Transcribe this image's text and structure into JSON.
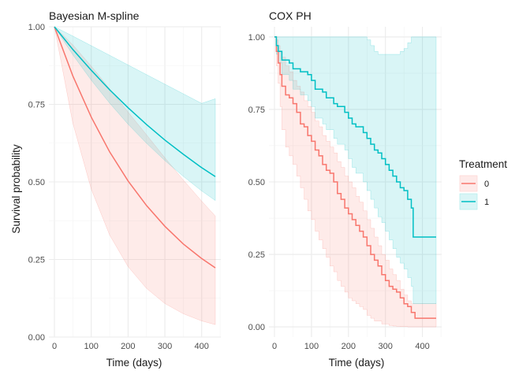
{
  "chart_data": [
    {
      "type": "line",
      "title": "Bayesian M-spline",
      "xlabel": "Time (days)",
      "ylabel": "Survival probability",
      "xlim": [
        -15,
        452
      ],
      "ylim": [
        0,
        1
      ],
      "x_ticks": [
        0,
        100,
        200,
        300,
        400
      ],
      "y_ticks": [
        0.0,
        0.25,
        0.5,
        0.75,
        1.0
      ],
      "y_tick_labels": [
        "0.00",
        "0.25",
        "0.50",
        "0.75",
        "1.00"
      ],
      "grid": true,
      "series": [
        {
          "name": "0",
          "color": "#F8766D",
          "x": [
            0,
            50,
            100,
            150,
            200,
            250,
            300,
            350,
            400,
            437
          ],
          "y": [
            1.0,
            0.842,
            0.709,
            0.597,
            0.503,
            0.424,
            0.357,
            0.3,
            0.253,
            0.223
          ],
          "lower": [
            1.0,
            0.69,
            0.477,
            0.329,
            0.227,
            0.157,
            0.108,
            0.075,
            0.052,
            0.04
          ],
          "upper": [
            1.0,
            0.942,
            0.873,
            0.8,
            0.725,
            0.652,
            0.578,
            0.506,
            0.438,
            0.39
          ]
        },
        {
          "name": "1",
          "color": "#00BFC4",
          "x": [
            0,
            50,
            100,
            150,
            200,
            250,
            300,
            350,
            400,
            437
          ],
          "y": [
            1.0,
            0.927,
            0.86,
            0.797,
            0.739,
            0.685,
            0.635,
            0.589,
            0.546,
            0.517
          ],
          "lower": [
            1.0,
            0.91,
            0.828,
            0.754,
            0.686,
            0.625,
            0.569,
            0.518,
            0.471,
            0.44
          ],
          "upper": [
            1.0,
            0.97,
            0.939,
            0.908,
            0.877,
            0.846,
            0.815,
            0.784,
            0.753,
            0.768
          ]
        }
      ]
    },
    {
      "type": "line",
      "step": true,
      "title": "COX PH",
      "xlabel": "Time (days)",
      "xlim": [
        -15,
        452
      ],
      "ylim": [
        -0.035,
        1.035
      ],
      "x_ticks": [
        0,
        100,
        200,
        300,
        400
      ],
      "y_ticks": [
        0.0,
        0.25,
        0.5,
        0.75,
        1.0
      ],
      "y_tick_labels": [
        "0.00",
        "0.25",
        "0.50",
        "0.75",
        "1.00"
      ],
      "grid": true,
      "series": [
        {
          "name": "0",
          "color": "#F8766D",
          "x": [
            0,
            5,
            10,
            15,
            20,
            30,
            40,
            50,
            60,
            70,
            80,
            90,
            100,
            110,
            120,
            130,
            140,
            150,
            160,
            170,
            180,
            190,
            200,
            210,
            220,
            230,
            240,
            250,
            260,
            270,
            280,
            290,
            300,
            310,
            320,
            330,
            340,
            350,
            360,
            370,
            380,
            437
          ],
          "y": [
            1.0,
            0.95,
            0.91,
            0.87,
            0.83,
            0.8,
            0.79,
            0.77,
            0.74,
            0.7,
            0.69,
            0.66,
            0.64,
            0.61,
            0.59,
            0.56,
            0.54,
            0.53,
            0.5,
            0.46,
            0.44,
            0.41,
            0.39,
            0.37,
            0.35,
            0.33,
            0.31,
            0.28,
            0.25,
            0.23,
            0.21,
            0.18,
            0.16,
            0.14,
            0.13,
            0.12,
            0.1,
            0.08,
            0.07,
            0.05,
            0.03,
            0.03
          ],
          "lower": [
            1.0,
            0.9,
            0.84,
            0.76,
            0.68,
            0.62,
            0.59,
            0.56,
            0.52,
            0.48,
            0.44,
            0.4,
            0.37,
            0.33,
            0.3,
            0.27,
            0.24,
            0.21,
            0.19,
            0.16,
            0.14,
            0.12,
            0.1,
            0.09,
            0.08,
            0.07,
            0.06,
            0.04,
            0.03,
            0.02,
            0.02,
            0.01,
            0.01,
            0.005,
            0.003,
            0.002,
            0.001,
            0.001,
            0.0,
            0.0,
            0.0,
            0.0
          ],
          "upper": [
            1.0,
            0.99,
            0.97,
            0.95,
            0.93,
            0.9,
            0.88,
            0.85,
            0.83,
            0.81,
            0.78,
            0.76,
            0.74,
            0.71,
            0.69,
            0.66,
            0.64,
            0.62,
            0.6,
            0.57,
            0.55,
            0.52,
            0.5,
            0.48,
            0.45,
            0.43,
            0.4,
            0.37,
            0.34,
            0.31,
            0.28,
            0.25,
            0.23,
            0.2,
            0.18,
            0.16,
            0.13,
            0.11,
            0.09,
            0.08,
            0.08,
            0.08
          ]
        },
        {
          "name": "1",
          "color": "#00BFC4",
          "x": [
            0,
            5,
            10,
            20,
            40,
            50,
            70,
            90,
            100,
            110,
            130,
            140,
            160,
            170,
            190,
            200,
            210,
            220,
            240,
            250,
            260,
            270,
            280,
            290,
            300,
            310,
            320,
            330,
            340,
            350,
            360,
            370,
            375,
            437
          ],
          "y": [
            1.0,
            0.97,
            0.95,
            0.92,
            0.91,
            0.89,
            0.88,
            0.87,
            0.85,
            0.82,
            0.81,
            0.79,
            0.77,
            0.76,
            0.74,
            0.72,
            0.7,
            0.69,
            0.67,
            0.65,
            0.63,
            0.61,
            0.6,
            0.58,
            0.56,
            0.54,
            0.52,
            0.5,
            0.48,
            0.47,
            0.44,
            0.41,
            0.31,
            0.31
          ],
          "lower": [
            1.0,
            0.94,
            0.91,
            0.87,
            0.85,
            0.82,
            0.8,
            0.78,
            0.76,
            0.72,
            0.7,
            0.68,
            0.65,
            0.63,
            0.61,
            0.58,
            0.55,
            0.53,
            0.5,
            0.47,
            0.44,
            0.41,
            0.38,
            0.36,
            0.33,
            0.3,
            0.27,
            0.24,
            0.22,
            0.2,
            0.17,
            0.14,
            0.08,
            0.08
          ],
          "upper": [
            1.0,
            1.0,
            1.0,
            1.0,
            1.0,
            1.0,
            1.0,
            1.0,
            1.0,
            1.0,
            1.0,
            1.0,
            1.0,
            1.0,
            1.0,
            1.0,
            1.0,
            1.0,
            1.0,
            0.99,
            0.97,
            0.95,
            0.94,
            0.94,
            0.94,
            0.94,
            0.94,
            0.94,
            0.95,
            0.96,
            0.98,
            1.0,
            1.0,
            1.0
          ]
        }
      ]
    }
  ],
  "legend": {
    "title": "Treatment",
    "position": "right",
    "entries": [
      {
        "label": "0",
        "color": "#F8766D"
      },
      {
        "label": "1",
        "color": "#00BFC4"
      }
    ]
  }
}
